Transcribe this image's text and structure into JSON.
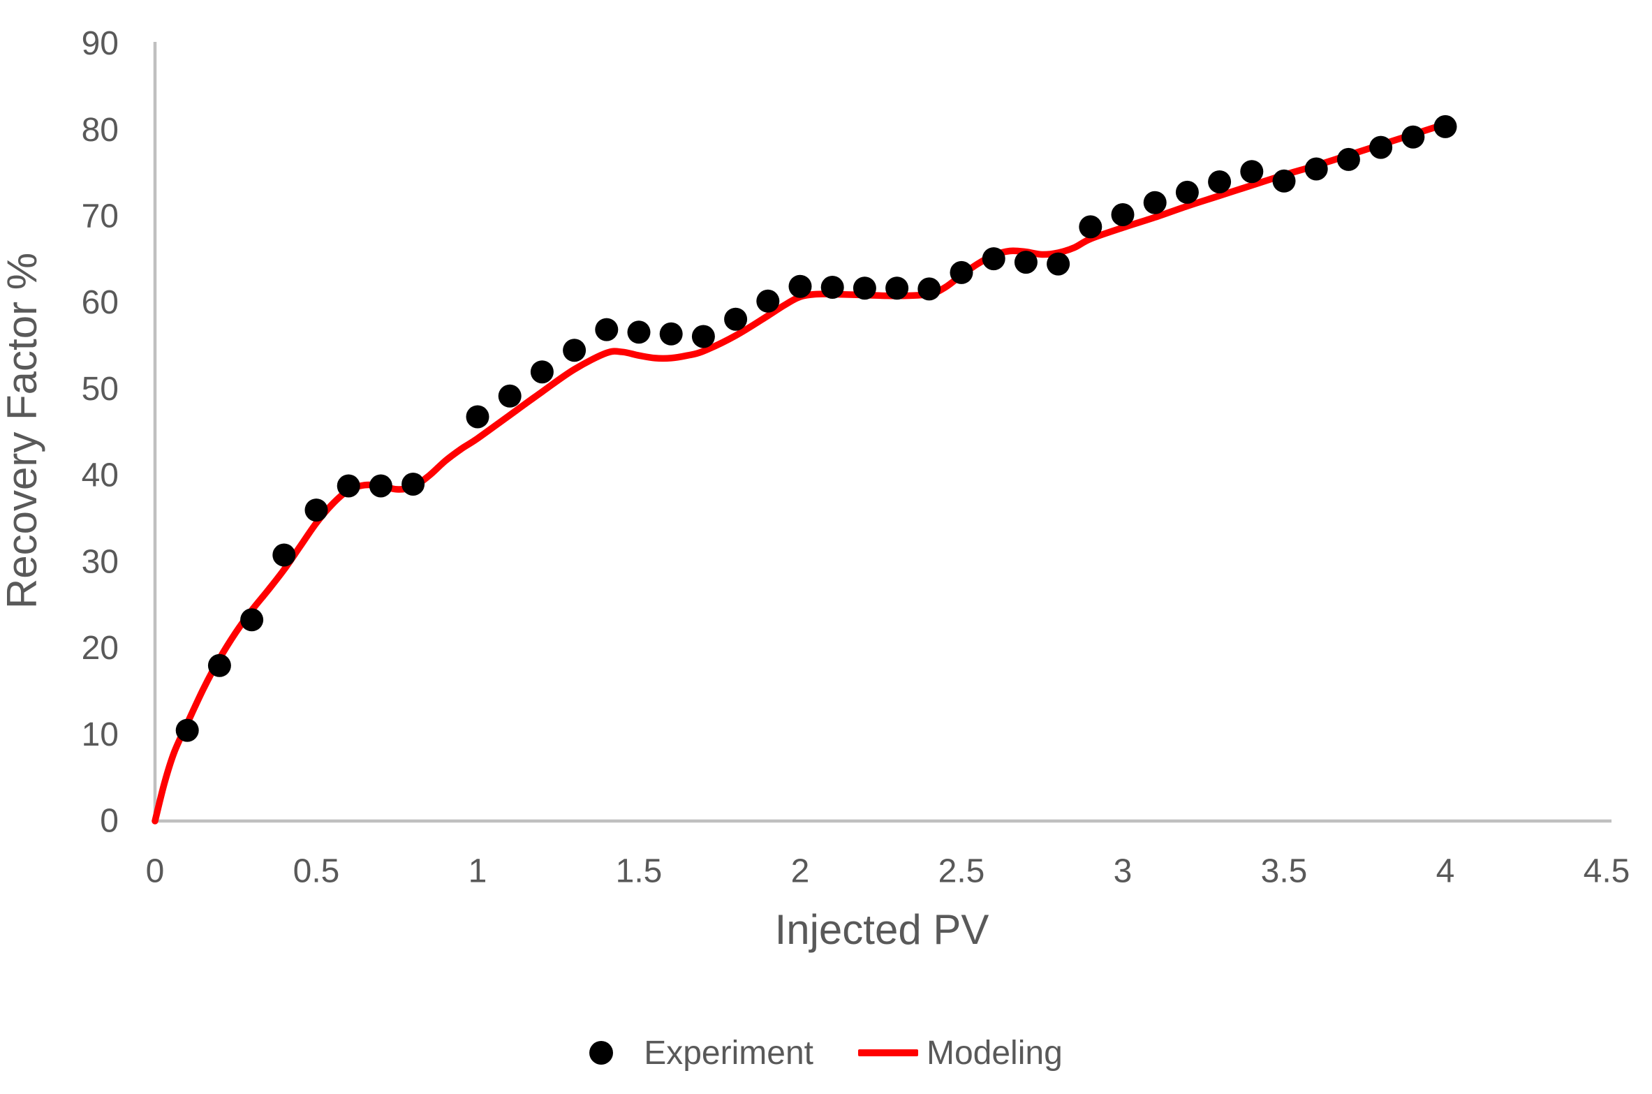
{
  "chart_data": {
    "type": "scatter",
    "title": "",
    "xlabel": "Injected PV",
    "ylabel": "Recovery Factor %",
    "xlim": [
      0,
      4.5
    ],
    "ylim": [
      0,
      90
    ],
    "xticks": [
      "0",
      "0.5",
      "1",
      "1.5",
      "2",
      "2.5",
      "3",
      "3.5",
      "4",
      "4.5"
    ],
    "yticks": [
      "0",
      "10",
      "20",
      "30",
      "40",
      "50",
      "60",
      "70",
      "80",
      "90"
    ],
    "grid": false,
    "legend_position": "bottom-center",
    "colors": {
      "axis_line": "#BFBFBF",
      "text": "#595959",
      "experiment": "#000000",
      "modeling": "#FF0000"
    },
    "series": [
      {
        "name": "Experiment",
        "type": "scatter",
        "marker": "filled-circle",
        "color": "#000000",
        "points": [
          [
            0.1,
            10.5
          ],
          [
            0.2,
            18.0
          ],
          [
            0.3,
            23.3
          ],
          [
            0.4,
            30.8
          ],
          [
            0.5,
            36.0
          ],
          [
            0.6,
            38.8
          ],
          [
            0.7,
            38.8
          ],
          [
            0.8,
            39.0
          ],
          [
            1.0,
            46.8
          ],
          [
            1.1,
            49.2
          ],
          [
            1.2,
            52.0
          ],
          [
            1.3,
            54.5
          ],
          [
            1.4,
            56.9
          ],
          [
            1.5,
            56.6
          ],
          [
            1.6,
            56.4
          ],
          [
            1.7,
            56.1
          ],
          [
            1.8,
            58.1
          ],
          [
            1.9,
            60.2
          ],
          [
            2.0,
            61.9
          ],
          [
            2.1,
            61.8
          ],
          [
            2.2,
            61.7
          ],
          [
            2.3,
            61.7
          ],
          [
            2.4,
            61.6
          ],
          [
            2.5,
            63.5
          ],
          [
            2.6,
            65.1
          ],
          [
            2.7,
            64.7
          ],
          [
            2.8,
            64.5
          ],
          [
            2.9,
            68.8
          ],
          [
            3.0,
            70.2
          ],
          [
            3.1,
            71.6
          ],
          [
            3.2,
            72.8
          ],
          [
            3.3,
            74.0
          ],
          [
            3.4,
            75.2
          ],
          [
            3.5,
            74.1
          ],
          [
            3.6,
            75.5
          ],
          [
            3.7,
            76.6
          ],
          [
            3.8,
            78.0
          ],
          [
            3.9,
            79.2
          ],
          [
            4.0,
            80.4
          ]
        ]
      },
      {
        "name": "Modeling",
        "type": "line",
        "color": "#FF0000",
        "points": [
          [
            0,
            0
          ],
          [
            0.03,
            4.5
          ],
          [
            0.06,
            8.0
          ],
          [
            0.1,
            11.3
          ],
          [
            0.15,
            15.3
          ],
          [
            0.2,
            18.8
          ],
          [
            0.25,
            21.8
          ],
          [
            0.3,
            24.4
          ],
          [
            0.35,
            26.7
          ],
          [
            0.4,
            29.1
          ],
          [
            0.45,
            31.8
          ],
          [
            0.5,
            34.5
          ],
          [
            0.55,
            36.7
          ],
          [
            0.6,
            38.3
          ],
          [
            0.65,
            38.9
          ],
          [
            0.7,
            38.8
          ],
          [
            0.75,
            38.4
          ],
          [
            0.8,
            38.7
          ],
          [
            0.85,
            40.0
          ],
          [
            0.9,
            41.7
          ],
          [
            0.95,
            43.1
          ],
          [
            1.0,
            44.3
          ],
          [
            1.1,
            47.0
          ],
          [
            1.2,
            49.7
          ],
          [
            1.3,
            52.3
          ],
          [
            1.4,
            54.2
          ],
          [
            1.45,
            54.3
          ],
          [
            1.5,
            53.9
          ],
          [
            1.55,
            53.6
          ],
          [
            1.6,
            53.6
          ],
          [
            1.65,
            53.9
          ],
          [
            1.7,
            54.4
          ],
          [
            1.8,
            56.2
          ],
          [
            1.9,
            58.5
          ],
          [
            1.95,
            59.7
          ],
          [
            2.0,
            60.7
          ],
          [
            2.05,
            61.0
          ],
          [
            2.1,
            61.0
          ],
          [
            2.2,
            60.9
          ],
          [
            2.3,
            60.8
          ],
          [
            2.4,
            61.0
          ],
          [
            2.45,
            61.8
          ],
          [
            2.5,
            63.2
          ],
          [
            2.55,
            64.5
          ],
          [
            2.6,
            65.5
          ],
          [
            2.65,
            66.0
          ],
          [
            2.7,
            65.9
          ],
          [
            2.75,
            65.6
          ],
          [
            2.8,
            65.8
          ],
          [
            2.85,
            66.4
          ],
          [
            2.9,
            67.4
          ],
          [
            3.0,
            68.7
          ],
          [
            3.1,
            69.9
          ],
          [
            3.2,
            71.2
          ],
          [
            3.3,
            72.4
          ],
          [
            3.4,
            73.6
          ],
          [
            3.5,
            74.8
          ],
          [
            3.6,
            75.9
          ],
          [
            3.7,
            77.1
          ],
          [
            3.8,
            78.3
          ],
          [
            3.9,
            79.5
          ],
          [
            4.0,
            80.7
          ]
        ]
      }
    ]
  }
}
